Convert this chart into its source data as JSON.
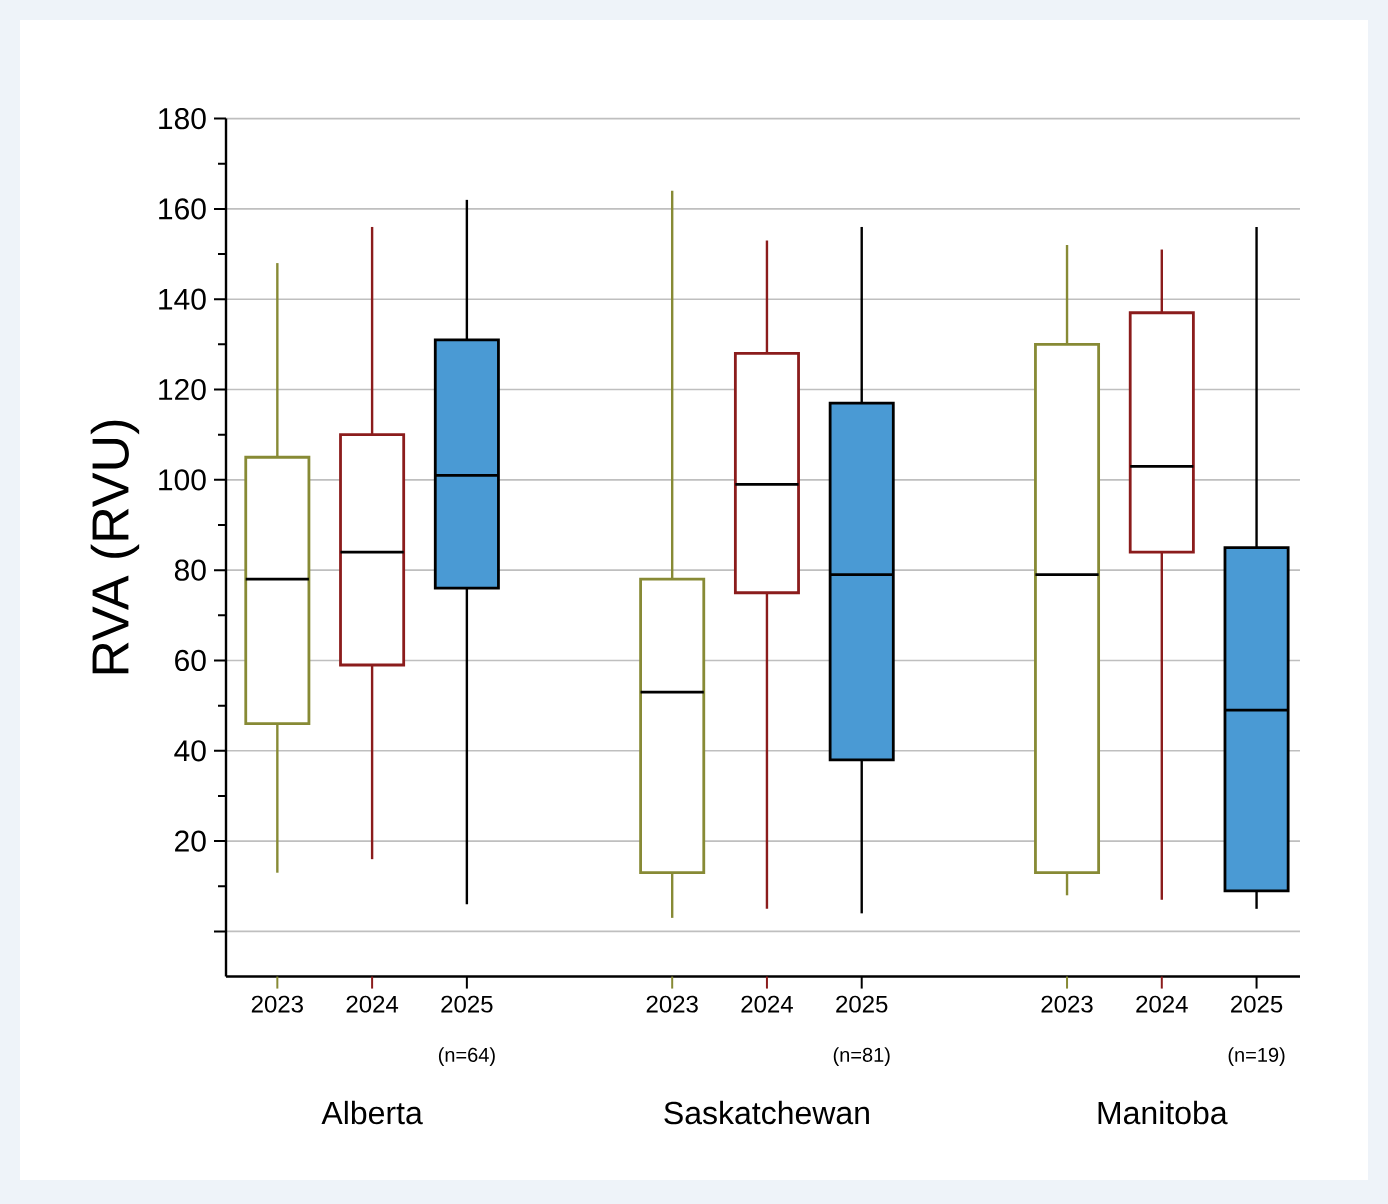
{
  "chart_data": {
    "type": "box",
    "ylabel": "RVA (RVU)",
    "categories": [
      "Alberta",
      "Saskatchewan",
      "Manitoba"
    ],
    "series": [
      {
        "name": "2023",
        "color": "#878a35",
        "boxes": [
          {
            "low": 13,
            "q1": 46,
            "median": 78,
            "q3": 105,
            "high": 148
          },
          {
            "low": 3,
            "q1": 13,
            "median": 53,
            "q3": 78,
            "high": 164
          },
          {
            "low": 8,
            "q1": 13,
            "median": 79,
            "q3": 130,
            "high": 152
          }
        ]
      },
      {
        "name": "2024",
        "color": "#8b1c1c",
        "boxes": [
          {
            "low": 16,
            "q1": 59,
            "median": 84,
            "q3": 110,
            "high": 156
          },
          {
            "low": 5,
            "q1": 75,
            "median": 99,
            "q3": 128,
            "high": 153
          },
          {
            "low": 7,
            "q1": 84,
            "median": 103,
            "q3": 137,
            "high": 151
          }
        ]
      },
      {
        "name": "2025",
        "color": "#4a9ad4",
        "boxes": [
          {
            "low": 6,
            "q1": 76,
            "median": 101,
            "q3": 131,
            "high": 162
          },
          {
            "low": 4,
            "q1": 38,
            "median": 79,
            "q3": 117,
            "high": 156
          },
          {
            "low": 5,
            "q1": 9,
            "median": 49,
            "q3": 85,
            "high": 156
          }
        ]
      }
    ],
    "ylim": [
      -10,
      180
    ],
    "yticks": [
      {
        "value": 0,
        "label": null
      },
      20,
      40,
      60,
      80,
      100,
      120,
      140,
      160,
      180
    ],
    "grid": "y",
    "legend": "bottom",
    "annotations": [
      "(n=64)",
      "(n=81)",
      "(n=19)"
    ]
  }
}
